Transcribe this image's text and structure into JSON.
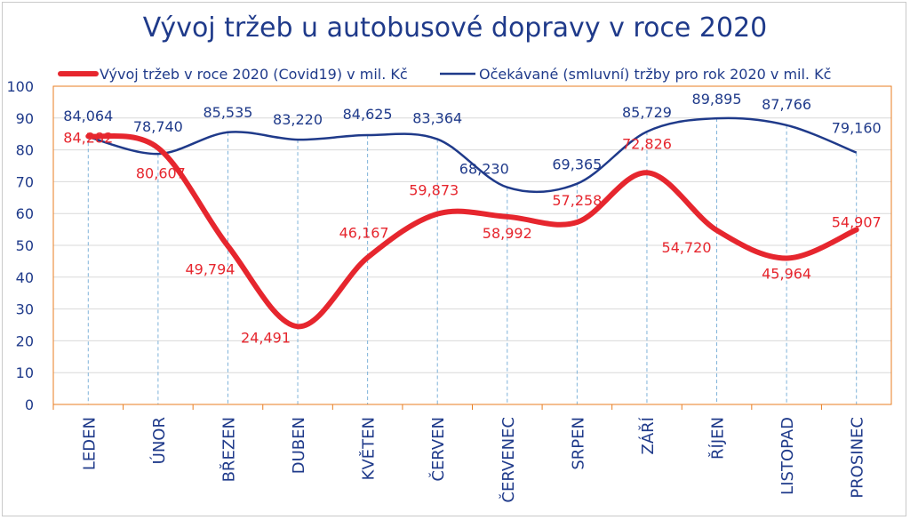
{
  "title": "Vývoj tržeb u autobusové dopravy v roce 2020",
  "colors": {
    "actual": "#e6262e",
    "expected": "#1f3a8a",
    "grid": "#d9d9d9",
    "plot_border": "#e87e22",
    "drop": "#7fb2d9",
    "axis_text": "#1f3a8a",
    "red_label": "#e6262e"
  },
  "chart_data": {
    "type": "line",
    "title": "Vývoj tržeb u autobusové dopravy v roce 2020",
    "categories": [
      "LEDEN",
      "ÚNOR",
      "BŘEZEN",
      "DUBEN",
      "KVĚTEN",
      "ČERVEN",
      "ČERVENEC",
      "SRPEN",
      "ZÁŘÍ",
      "ŘÍJEN",
      "LISTOPAD",
      "PROSINEC"
    ],
    "ylim": [
      0,
      100
    ],
    "yticks": [
      "0",
      "10",
      "20",
      "30",
      "40",
      "50",
      "60",
      "70",
      "80",
      "90",
      "100"
    ],
    "grid": true,
    "legend_position": "top",
    "series": [
      {
        "name": "Vývoj tržeb v roce 2020 (Covid19) v mil. Kč",
        "color": "#e6262e",
        "values": [
          84.282,
          80.607,
          49.794,
          24.491,
          46.167,
          59.873,
          58.992,
          57.258,
          72.826,
          54.72,
          45.964,
          54.907
        ],
        "labels": [
          "84,282",
          "80,607",
          "49,794",
          "24,491",
          "46,167",
          "59,873",
          "58,992",
          "57,258",
          "72,826",
          "54,720",
          "45,964",
          "54,907"
        ]
      },
      {
        "name": "Očekávané (smluvní) tržby pro rok 2020 v mil. Kč",
        "color": "#1f3a8a",
        "values": [
          84.064,
          78.74,
          85.535,
          83.22,
          84.625,
          83.364,
          68.23,
          69.365,
          85.729,
          89.895,
          87.766,
          79.16
        ],
        "labels": [
          "84,064",
          "78,740",
          "85,535",
          "83,220",
          "84,625",
          "83,364",
          "68,230",
          "69,365",
          "85,729",
          "89,895",
          "87,766",
          "79,160"
        ]
      }
    ]
  }
}
